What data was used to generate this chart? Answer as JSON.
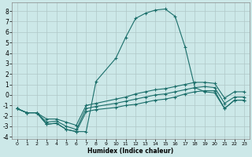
{
  "xlabel": "Humidex (Indice chaleur)",
  "background_color": "#cce8e8",
  "grid_color": "#b0c8c8",
  "line_color": "#1a6e6a",
  "xlim": [
    -0.5,
    23.5
  ],
  "ylim": [
    -4.2,
    8.8
  ],
  "xticks": [
    0,
    1,
    2,
    3,
    4,
    5,
    6,
    7,
    8,
    9,
    10,
    11,
    12,
    13,
    14,
    15,
    16,
    17,
    18,
    19,
    20,
    21,
    22,
    23
  ],
  "yticks": [
    -4,
    -3,
    -2,
    -1,
    0,
    1,
    2,
    3,
    4,
    5,
    6,
    7,
    8
  ],
  "main_x": [
    0,
    1,
    2,
    3,
    4,
    5,
    6,
    7,
    8,
    10,
    11,
    12,
    13,
    14,
    15,
    16,
    17,
    18,
    19,
    20,
    21,
    22,
    23
  ],
  "main_y": [
    -1.3,
    -1.7,
    -1.7,
    -2.8,
    -2.7,
    -3.3,
    -3.5,
    -3.5,
    1.3,
    3.5,
    5.5,
    7.3,
    7.8,
    8.1,
    8.2,
    7.5,
    4.6,
    0.7,
    0.3,
    0.2,
    -1.3,
    -0.5,
    -0.5
  ],
  "line2_x": [
    0,
    1,
    2,
    3,
    4,
    5,
    6,
    7,
    8,
    10,
    11,
    12,
    13,
    14,
    15,
    16,
    17,
    18,
    19,
    20,
    21,
    22,
    23
  ],
  "line2_y": [
    -1.3,
    -1.7,
    -1.7,
    -2.8,
    -2.7,
    -3.3,
    -3.5,
    -1.6,
    -1.4,
    -1.2,
    -1.0,
    -0.9,
    -0.7,
    -0.5,
    -0.4,
    -0.2,
    0.1,
    0.3,
    0.4,
    0.4,
    -1.3,
    -0.5,
    -0.5
  ],
  "line3_x": [
    0,
    1,
    2,
    3,
    4,
    5,
    6,
    7,
    8,
    10,
    11,
    12,
    13,
    14,
    15,
    16,
    17,
    18,
    19,
    20,
    21,
    22,
    23
  ],
  "line3_y": [
    -1.3,
    -1.7,
    -1.7,
    -2.6,
    -2.5,
    -3.0,
    -3.3,
    -1.3,
    -1.1,
    -0.8,
    -0.6,
    -0.4,
    -0.2,
    0.0,
    0.1,
    0.3,
    0.5,
    0.7,
    0.8,
    0.7,
    -0.8,
    -0.2,
    -0.2
  ],
  "line4_x": [
    0,
    1,
    2,
    3,
    4,
    5,
    6,
    7,
    8,
    10,
    11,
    12,
    13,
    14,
    15,
    16,
    17,
    18,
    19,
    20,
    21,
    22,
    23
  ],
  "line4_y": [
    -1.3,
    -1.7,
    -1.7,
    -2.3,
    -2.3,
    -2.6,
    -2.9,
    -1.0,
    -0.8,
    -0.4,
    -0.2,
    0.1,
    0.3,
    0.5,
    0.6,
    0.8,
    1.0,
    1.2,
    1.2,
    1.1,
    -0.3,
    0.3,
    0.3
  ]
}
